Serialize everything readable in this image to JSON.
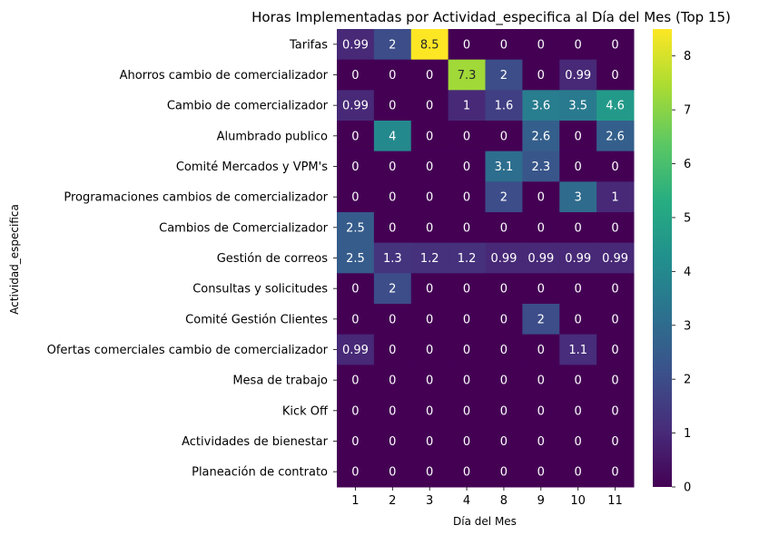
{
  "chart_data": {
    "type": "heatmap",
    "title": "Horas Implementadas por Actividad_especifica al Día del Mes (Top 15)",
    "xlabel": "Día del Mes",
    "ylabel": "Actividad_especifica",
    "columns": [
      "1",
      "2",
      "3",
      "4",
      "8",
      "9",
      "10",
      "11"
    ],
    "rows": [
      "Tarifas",
      "Ahorros cambio de comercializador",
      "Cambio de comercializador",
      "Alumbrado publico",
      "Comité Mercados y VPM's",
      "Programaciones cambios de comercializador",
      "Cambios de Comercializador",
      "Gestión de correos",
      "Consultas y solicitudes",
      "Comité Gestión Clientes",
      "Ofertas comerciales cambio de comercializador",
      "Mesa de trabajo",
      "Kick Off",
      "Actividades de bienestar",
      "Planeación de contrato"
    ],
    "values": [
      [
        0.99,
        2,
        8.5,
        0,
        0,
        0,
        0,
        0
      ],
      [
        0,
        0,
        0,
        7.3,
        2,
        0,
        0.99,
        0
      ],
      [
        0.99,
        0,
        0,
        1,
        1.6,
        3.6,
        3.5,
        4.6
      ],
      [
        0,
        4,
        0,
        0,
        0,
        2.6,
        0,
        2.6
      ],
      [
        0,
        0,
        0,
        0,
        3.1,
        2.3,
        0,
        0
      ],
      [
        0,
        0,
        0,
        0,
        2,
        0,
        3,
        1
      ],
      [
        2.5,
        0,
        0,
        0,
        0,
        0,
        0,
        0
      ],
      [
        2.5,
        1.3,
        1.2,
        1.2,
        0.99,
        0.99,
        0.99,
        0.99
      ],
      [
        0,
        2,
        0,
        0,
        0,
        0,
        0,
        0
      ],
      [
        0,
        0,
        0,
        0,
        0,
        2,
        0,
        0
      ],
      [
        0.99,
        0,
        0,
        0,
        0,
        0,
        1.1,
        0
      ],
      [
        0,
        0,
        0,
        0,
        0,
        0,
        0,
        0
      ],
      [
        0,
        0,
        0,
        0,
        0,
        0,
        0,
        0
      ],
      [
        0,
        0,
        0,
        0,
        0,
        0,
        0,
        0
      ],
      [
        0,
        0,
        0,
        0,
        0,
        0,
        0,
        0
      ]
    ],
    "colorbar": {
      "min": 0,
      "max": 8.5,
      "ticks": [
        0,
        1,
        2,
        3,
        4,
        5,
        6,
        7,
        8
      ],
      "colormap": "viridis"
    }
  }
}
